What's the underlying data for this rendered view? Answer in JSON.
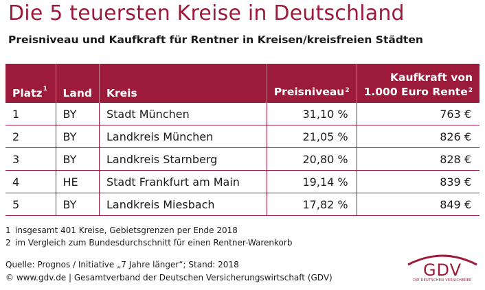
{
  "title": "Die 5 teuersten Kreise in Deutschland",
  "subtitle": "Preisniveau und Kaufkraft für Rentner in Kreisen/kreisfreien Städten",
  "table": {
    "headers": {
      "platz": "Platz",
      "platz_sup": "1",
      "land": "Land",
      "kreis": "Kreis",
      "preisniveau": "Preisniveau",
      "preisniveau_sup": "2",
      "kaufkraft_line1": "Kaufkraft von",
      "kaufkraft_line2": "1.000 Euro Rente",
      "kaufkraft_sup": "2"
    },
    "rows": [
      {
        "platz": "1",
        "land": "BY",
        "kreis": "Stadt München",
        "preisniveau": "31,10 %",
        "kaufkraft": "763 €"
      },
      {
        "platz": "2",
        "land": "BY",
        "kreis": "Landkreis München",
        "preisniveau": "21,05 %",
        "kaufkraft": "826 €"
      },
      {
        "platz": "3",
        "land": "BY",
        "kreis": "Landkreis Starnberg",
        "preisniveau": "20,80 %",
        "kaufkraft": "828 €"
      },
      {
        "platz": "4",
        "land": "HE",
        "kreis": "Stadt Frankfurt am Main",
        "preisniveau": "19,14 %",
        "kaufkraft": "839 €"
      },
      {
        "platz": "5",
        "land": "BY",
        "kreis": "Landkreis Miesbach",
        "preisniveau": "17,82 %",
        "kaufkraft": "849 €"
      }
    ]
  },
  "footnotes": [
    {
      "n": "1",
      "text": "insgesamt 401 Kreise, Gebietsgrenzen per Ende 2018"
    },
    {
      "n": "2",
      "text": "im Vergleich zum Bundesdurchschnitt für einen Rentner-Warenkorb"
    }
  ],
  "source": {
    "line1": "Quelle: Prognos / Initiative „7 Jahre länger“; Stand: 2018",
    "line2": "© www.gdv.de | Gesamtverband der Deutschen Versicherungswirtschaft (GDV)"
  },
  "logo": {
    "text": "GDV",
    "subtext": "DIE DEUTSCHEN VERSICHERER"
  },
  "colors": {
    "accent": "#9c1a3a"
  }
}
